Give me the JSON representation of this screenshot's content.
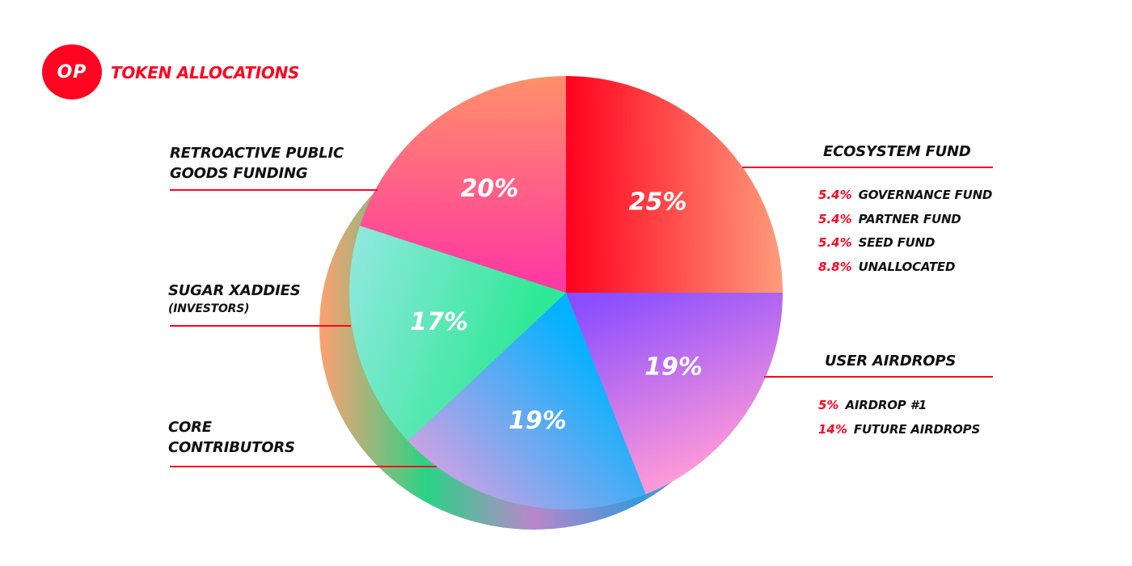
{
  "header": {
    "logo_text": "OP",
    "title": "TOKEN ALLOCATIONS"
  },
  "colors": {
    "accent": "#ff0420",
    "text": "#111111"
  },
  "chart_data": {
    "type": "pie",
    "title": "TOKEN ALLOCATIONS",
    "slices": [
      {
        "name": "ECOSYSTEM FUND",
        "value": 25,
        "value_label": "25%",
        "colors": [
          "#ff0420",
          "#ff9a7a"
        ],
        "breakdown": [
          {
            "value_label": "5.4%",
            "name": "GOVERNANCE FUND"
          },
          {
            "value_label": "5.4%",
            "name": "PARTNER FUND"
          },
          {
            "value_label": "5.4%",
            "name": "SEED FUND"
          },
          {
            "value_label": "8.8%",
            "name": "UNALLOCATED"
          }
        ]
      },
      {
        "name": "USER AIRDROPS",
        "value": 19,
        "value_label": "19%",
        "colors": [
          "#8a4dff",
          "#ff9ad8"
        ],
        "breakdown": [
          {
            "value_label": "5%",
            "name": "AIRDROP #1"
          },
          {
            "value_label": "14%",
            "name": "FUTURE AIRDROPS"
          }
        ]
      },
      {
        "name": "CORE CONTRIBUTORS",
        "value": 19,
        "value_label": "19%",
        "colors": [
          "#00b2ff",
          "#c6a2e4"
        ]
      },
      {
        "name": "SUGAR XADDIES",
        "subtitle": "(INVESTORS)",
        "value": 17,
        "value_label": "17%",
        "colors": [
          "#2ee896",
          "#8ee8dc"
        ]
      },
      {
        "name": "RETROACTIVE PUBLIC GOODS FUNDING",
        "value": 20,
        "value_label": "20%",
        "colors": [
          "#ff3aa0",
          "#ff8f6a"
        ]
      }
    ],
    "legend": "outside-labels"
  }
}
